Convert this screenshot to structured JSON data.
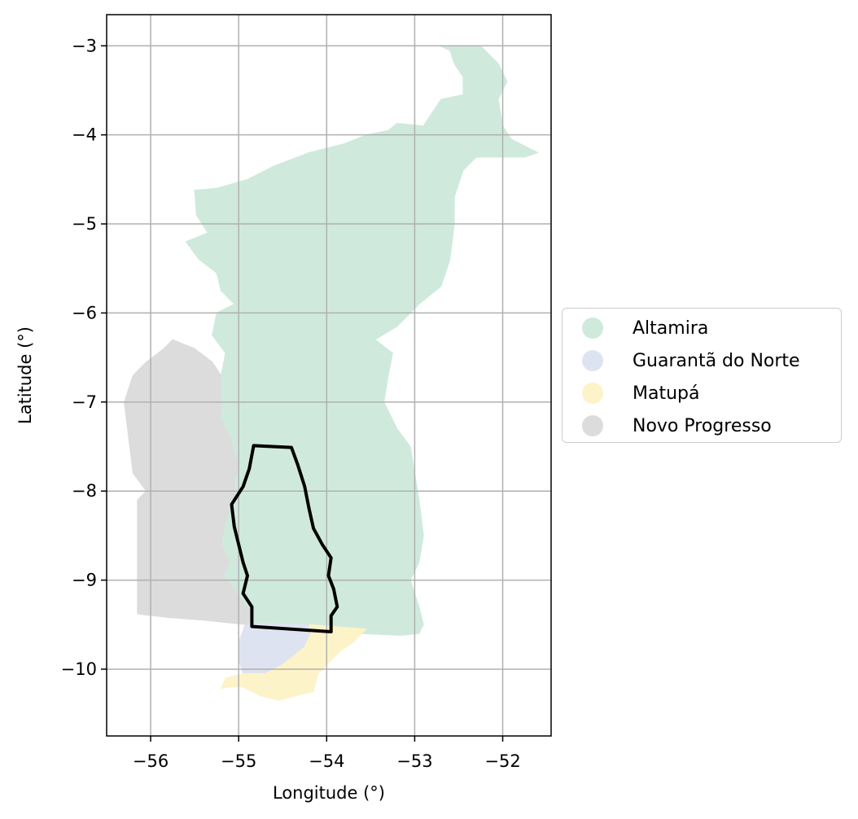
{
  "chart_data": {
    "type": "map",
    "xlabel": "Longitude (°)",
    "ylabel": "Latitude (°)",
    "xlim": [
      -56.5,
      -51.45
    ],
    "ylim": [
      -10.75,
      -2.65
    ],
    "x_ticks": [
      "−56",
      "−55",
      "−54",
      "−53",
      "−52"
    ],
    "x_tick_values": [
      -56,
      -55,
      -54,
      -53,
      -52
    ],
    "y_ticks": [
      "−3",
      "−4",
      "−5",
      "−6",
      "−7",
      "−8",
      "−9",
      "−10"
    ],
    "y_tick_values": [
      -3,
      -4,
      -5,
      -6,
      -7,
      -8,
      -9,
      -10
    ],
    "grid": true,
    "legend_placement": "right",
    "regions": [
      {
        "name": "Altamira",
        "color": "#cfeadc",
        "polygon": [
          [
            -52.72,
            -3.0
          ],
          [
            -52.6,
            -3.05
          ],
          [
            -52.55,
            -3.2
          ],
          [
            -52.45,
            -3.35
          ],
          [
            -52.45,
            -3.55
          ],
          [
            -52.7,
            -3.6
          ],
          [
            -52.8,
            -3.75
          ],
          [
            -52.9,
            -3.9
          ],
          [
            -53.2,
            -3.87
          ],
          [
            -53.3,
            -3.95
          ],
          [
            -53.55,
            -4.0
          ],
          [
            -53.8,
            -4.1
          ],
          [
            -54.2,
            -4.2
          ],
          [
            -54.6,
            -4.35
          ],
          [
            -54.9,
            -4.5
          ],
          [
            -55.25,
            -4.6
          ],
          [
            -55.5,
            -4.62
          ],
          [
            -55.48,
            -4.9
          ],
          [
            -55.35,
            -5.1
          ],
          [
            -55.6,
            -5.2
          ],
          [
            -55.45,
            -5.4
          ],
          [
            -55.25,
            -5.55
          ],
          [
            -55.2,
            -5.75
          ],
          [
            -55.05,
            -5.9
          ],
          [
            -55.25,
            -6.0
          ],
          [
            -55.3,
            -6.25
          ],
          [
            -55.15,
            -6.45
          ],
          [
            -55.2,
            -6.7
          ],
          [
            -55.2,
            -7.2
          ],
          [
            -55.1,
            -7.4
          ],
          [
            -55.0,
            -7.7
          ],
          [
            -55.05,
            -7.9
          ],
          [
            -55.05,
            -8.1
          ],
          [
            -55.15,
            -8.35
          ],
          [
            -55.2,
            -8.6
          ],
          [
            -55.1,
            -8.8
          ],
          [
            -55.18,
            -8.95
          ],
          [
            -55.05,
            -9.1
          ],
          [
            -54.95,
            -9.25
          ],
          [
            -54.85,
            -9.35
          ],
          [
            -54.9,
            -9.5
          ],
          [
            -54.6,
            -9.55
          ],
          [
            -54.3,
            -9.56
          ],
          [
            -54.0,
            -9.57
          ],
          [
            -53.6,
            -9.6
          ],
          [
            -53.15,
            -9.62
          ],
          [
            -52.95,
            -9.6
          ],
          [
            -52.9,
            -9.5
          ],
          [
            -52.95,
            -9.3
          ],
          [
            -53.05,
            -9.0
          ],
          [
            -52.95,
            -8.8
          ],
          [
            -52.9,
            -8.5
          ],
          [
            -52.95,
            -8.1
          ],
          [
            -53.0,
            -7.8
          ],
          [
            -53.05,
            -7.5
          ],
          [
            -53.2,
            -7.3
          ],
          [
            -53.35,
            -7.0
          ],
          [
            -53.3,
            -6.7
          ],
          [
            -53.25,
            -6.45
          ],
          [
            -53.45,
            -6.3
          ],
          [
            -53.2,
            -6.15
          ],
          [
            -52.95,
            -5.9
          ],
          [
            -52.7,
            -5.7
          ],
          [
            -52.6,
            -5.4
          ],
          [
            -52.55,
            -5.0
          ],
          [
            -52.55,
            -4.7
          ],
          [
            -52.45,
            -4.4
          ],
          [
            -52.3,
            -4.25
          ],
          [
            -51.75,
            -4.25
          ],
          [
            -51.6,
            -4.2
          ],
          [
            -51.9,
            -4.05
          ],
          [
            -52.0,
            -3.9
          ],
          [
            -52.05,
            -3.6
          ],
          [
            -51.95,
            -3.4
          ],
          [
            -52.05,
            -3.2
          ],
          [
            -52.2,
            -3.05
          ],
          [
            -52.25,
            -3.0
          ]
        ]
      },
      {
        "name": "Guarantã do Norte",
        "color": "#dde3f1",
        "polygon": [
          [
            -54.92,
            -9.48
          ],
          [
            -54.2,
            -9.5
          ],
          [
            -54.18,
            -9.6
          ],
          [
            -54.25,
            -9.75
          ],
          [
            -54.5,
            -9.95
          ],
          [
            -54.7,
            -10.05
          ],
          [
            -54.95,
            -10.05
          ],
          [
            -55.0,
            -9.9
          ],
          [
            -55.0,
            -9.7
          ]
        ]
      },
      {
        "name": "Matupá",
        "color": "#fdf3c8",
        "polygon": [
          [
            -54.2,
            -9.5
          ],
          [
            -53.55,
            -9.55
          ],
          [
            -53.7,
            -9.7
          ],
          [
            -53.85,
            -9.8
          ],
          [
            -53.95,
            -9.9
          ],
          [
            -54.1,
            -10.05
          ],
          [
            -54.15,
            -10.25
          ],
          [
            -54.35,
            -10.3
          ],
          [
            -54.55,
            -10.35
          ],
          [
            -54.75,
            -10.3
          ],
          [
            -54.95,
            -10.2
          ],
          [
            -55.1,
            -10.2
          ],
          [
            -55.2,
            -10.22
          ],
          [
            -55.15,
            -10.1
          ],
          [
            -54.95,
            -10.05
          ],
          [
            -54.7,
            -10.05
          ],
          [
            -54.5,
            -9.95
          ],
          [
            -54.25,
            -9.75
          ],
          [
            -54.18,
            -9.6
          ]
        ]
      },
      {
        "name": "Novo Progresso",
        "color": "#dcdcdc",
        "polygon": [
          [
            -55.75,
            -6.3
          ],
          [
            -55.5,
            -6.4
          ],
          [
            -55.3,
            -6.55
          ],
          [
            -55.2,
            -6.7
          ],
          [
            -55.2,
            -7.2
          ],
          [
            -55.1,
            -7.4
          ],
          [
            -55.0,
            -7.7
          ],
          [
            -55.05,
            -7.9
          ],
          [
            -55.05,
            -8.1
          ],
          [
            -55.15,
            -8.35
          ],
          [
            -55.2,
            -8.6
          ],
          [
            -55.1,
            -8.8
          ],
          [
            -55.18,
            -8.95
          ],
          [
            -55.05,
            -9.1
          ],
          [
            -54.95,
            -9.25
          ],
          [
            -54.85,
            -9.35
          ],
          [
            -54.9,
            -9.5
          ],
          [
            -55.4,
            -9.45
          ],
          [
            -55.8,
            -9.42
          ],
          [
            -56.15,
            -9.38
          ],
          [
            -56.15,
            -9.0
          ],
          [
            -56.15,
            -8.5
          ],
          [
            -56.15,
            -8.1
          ],
          [
            -56.05,
            -8.0
          ],
          [
            -56.2,
            -7.8
          ],
          [
            -56.25,
            -7.4
          ],
          [
            -56.3,
            -7.0
          ],
          [
            -56.2,
            -6.7
          ],
          [
            -56.05,
            -6.55
          ],
          [
            -55.85,
            -6.4
          ]
        ]
      }
    ],
    "outline": {
      "color": "#000000",
      "polygon": [
        [
          -54.83,
          -7.49
        ],
        [
          -54.4,
          -7.51
        ],
        [
          -54.33,
          -7.7
        ],
        [
          -54.25,
          -7.95
        ],
        [
          -54.2,
          -8.2
        ],
        [
          -54.15,
          -8.42
        ],
        [
          -54.05,
          -8.6
        ],
        [
          -53.95,
          -8.75
        ],
        [
          -53.98,
          -8.95
        ],
        [
          -53.92,
          -9.1
        ],
        [
          -53.88,
          -9.3
        ],
        [
          -53.95,
          -9.4
        ],
        [
          -53.95,
          -9.58
        ],
        [
          -54.85,
          -9.52
        ],
        [
          -54.85,
          -9.3
        ],
        [
          -54.95,
          -9.15
        ],
        [
          -54.9,
          -8.95
        ],
        [
          -54.95,
          -8.8
        ],
        [
          -55.0,
          -8.6
        ],
        [
          -55.05,
          -8.4
        ],
        [
          -55.08,
          -8.15
        ],
        [
          -54.95,
          -7.95
        ],
        [
          -54.88,
          -7.75
        ]
      ]
    }
  },
  "legend": {
    "items": [
      {
        "label": "Altamira",
        "color": "#cfeadc"
      },
      {
        "label": "Guarantã do Norte",
        "color": "#dde3f1"
      },
      {
        "label": "Matupá",
        "color": "#fdf3c8"
      },
      {
        "label": "Novo Progresso",
        "color": "#dcdcdc"
      }
    ]
  }
}
